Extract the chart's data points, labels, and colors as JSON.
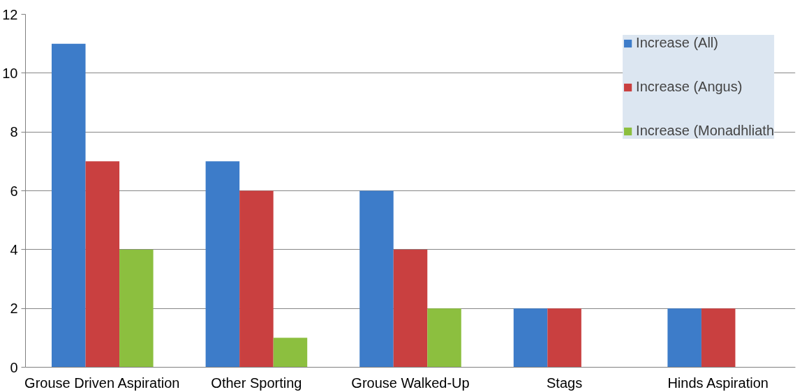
{
  "chart_data": {
    "type": "bar",
    "categories": [
      "Grouse Driven Aspiration",
      "Other Sporting",
      "Grouse Walked-Up",
      "Stags",
      "Hinds Aspiration"
    ],
    "series": [
      {
        "name": "Increase (All)",
        "color": "#3d7cc9",
        "values": [
          11,
          7,
          6,
          2,
          2
        ]
      },
      {
        "name": "Increase (Angus)",
        "color": "#c94040",
        "values": [
          7,
          6,
          4,
          2,
          2
        ]
      },
      {
        "name": "Increase (Monadhliath",
        "color": "#8cbf3f",
        "values": [
          4,
          1,
          2,
          null,
          null
        ]
      }
    ],
    "ylim": [
      0,
      12
    ],
    "yticks": [
      0,
      2,
      4,
      6,
      8,
      10,
      12
    ],
    "grid": "y",
    "legend": "top right"
  }
}
